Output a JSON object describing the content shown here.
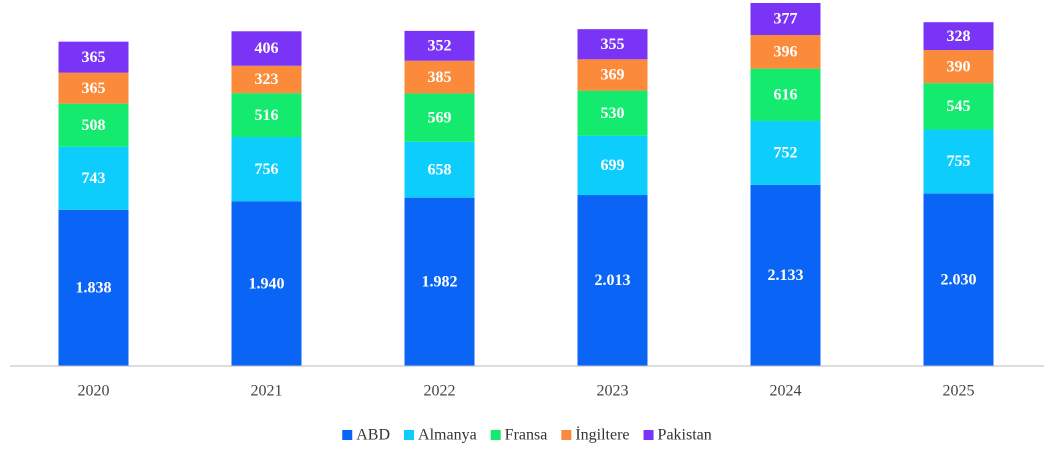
{
  "chart_data": {
    "type": "stacked_bar",
    "categories": [
      "2020",
      "2021",
      "2022",
      "2023",
      "2024",
      "2025"
    ],
    "series": [
      {
        "name": "ABD",
        "color": "#0a64f5",
        "values": [
          1838,
          1940,
          1982,
          2013,
          2133,
          2030
        ],
        "value_labels": [
          "1.838",
          "1.940",
          "1.982",
          "2.013",
          "2.133",
          "2.030"
        ]
      },
      {
        "name": "Almanya",
        "color": "#0ccdfb",
        "values": [
          743,
          756,
          658,
          699,
          752,
          755
        ]
      },
      {
        "name": "Fransa",
        "color": "#14ea6e",
        "values": [
          508,
          516,
          569,
          530,
          616,
          545
        ]
      },
      {
        "name": "İngiltere",
        "color": "#fb8a3a",
        "values": [
          365,
          323,
          385,
          369,
          396,
          390
        ]
      },
      {
        "name": "Pakistan",
        "color": "#7a34f5",
        "values": [
          365,
          406,
          352,
          355,
          377,
          328
        ]
      }
    ],
    "legend": "bottom"
  }
}
